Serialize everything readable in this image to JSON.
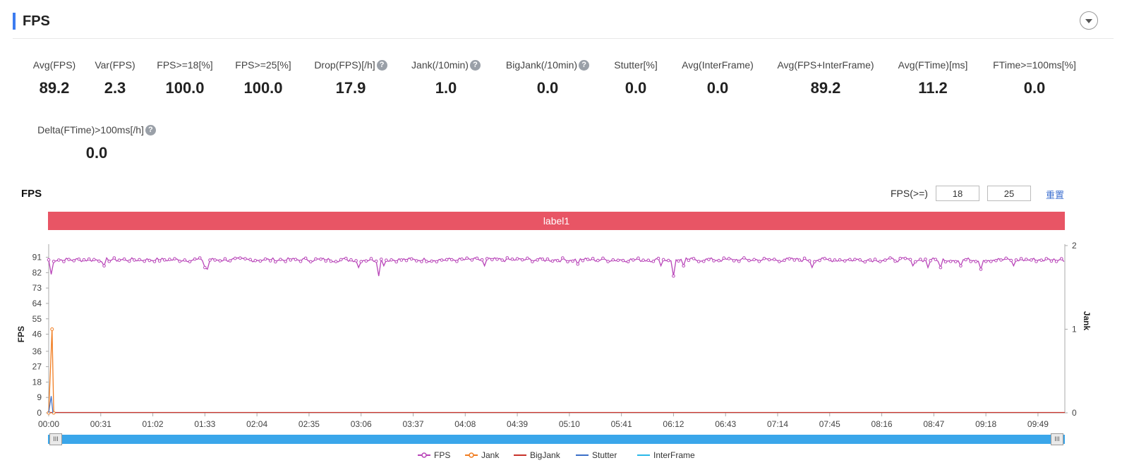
{
  "header": {
    "title": "FPS"
  },
  "metrics": [
    {
      "label": "Avg(FPS)",
      "value": "89.2",
      "help": false
    },
    {
      "label": "Var(FPS)",
      "value": "2.3",
      "help": false
    },
    {
      "label": "FPS>=18[%]",
      "value": "100.0",
      "help": false
    },
    {
      "label": "FPS>=25[%]",
      "value": "100.0",
      "help": false
    },
    {
      "label": "Drop(FPS)[/h]",
      "value": "17.9",
      "help": true
    },
    {
      "label": "Jank(/10min)",
      "value": "1.0",
      "help": true
    },
    {
      "label": "BigJank(/10min)",
      "value": "0.0",
      "help": true
    },
    {
      "label": "Stutter[%]",
      "value": "0.0",
      "help": false
    },
    {
      "label": "Avg(InterFrame)",
      "value": "0.0",
      "help": false
    },
    {
      "label": "Avg(FPS+InterFrame)",
      "value": "89.2",
      "help": false
    },
    {
      "label": "Avg(FTime)[ms]",
      "value": "11.2",
      "help": false
    },
    {
      "label": "FTime>=100ms[%]",
      "value": "0.0",
      "help": false
    },
    {
      "label": "Delta(FTime)>100ms[/h]",
      "value": "0.0",
      "help": true
    }
  ],
  "help_glyph": "?",
  "chart_section": {
    "title": "FPS",
    "threshold_label": "FPS(>=)",
    "threshold_low": "18",
    "threshold_high": "25",
    "reset_label": "重置",
    "band_label": "label1",
    "slider_handle_glyph": "III"
  },
  "chart_data": {
    "type": "line",
    "ylabel": "FPS",
    "y2label": "Jank",
    "y_ticks": [
      0,
      9,
      18,
      27,
      36,
      46,
      55,
      64,
      73,
      82,
      91
    ],
    "y2_ticks": [
      0,
      1,
      2
    ],
    "ylim": [
      0,
      95
    ],
    "y2lim": [
      0,
      2
    ],
    "x_ticks": [
      "00:00",
      "00:31",
      "01:02",
      "01:33",
      "02:04",
      "02:35",
      "03:06",
      "03:37",
      "04:08",
      "04:39",
      "05:10",
      "05:41",
      "06:12",
      "06:43",
      "07:14",
      "07:45",
      "08:16",
      "08:47",
      "09:18",
      "09:49"
    ],
    "xlim_seconds": [
      0,
      605
    ],
    "fps_base": 89.5,
    "fps_dips": [
      {
        "t": 2,
        "v": 81
      },
      {
        "t": 4,
        "v": 84
      },
      {
        "t": 33,
        "v": 86
      },
      {
        "t": 93,
        "v": 85
      },
      {
        "t": 95,
        "v": 84
      },
      {
        "t": 97,
        "v": 86
      },
      {
        "t": 185,
        "v": 85
      },
      {
        "t": 197,
        "v": 80
      },
      {
        "t": 200,
        "v": 86
      },
      {
        "t": 260,
        "v": 86
      },
      {
        "t": 315,
        "v": 87
      },
      {
        "t": 365,
        "v": 86
      },
      {
        "t": 372,
        "v": 80
      },
      {
        "t": 378,
        "v": 86
      },
      {
        "t": 455,
        "v": 85
      },
      {
        "t": 515,
        "v": 86
      },
      {
        "t": 517,
        "v": 84
      },
      {
        "t": 524,
        "v": 85
      },
      {
        "t": 531,
        "v": 85
      },
      {
        "t": 543,
        "v": 86
      },
      {
        "t": 555,
        "v": 84
      },
      {
        "t": 575,
        "v": 86
      }
    ],
    "jank": [
      {
        "t": 0,
        "v": 0
      },
      {
        "t": 2,
        "v": 1
      },
      {
        "t": 3,
        "v": 0
      }
    ],
    "stutter": [
      {
        "t": 0,
        "v": 0
      },
      {
        "t": 1.5,
        "v": 0.2
      },
      {
        "t": 2.5,
        "v": 0
      }
    ],
    "series": [
      {
        "name": "FPS",
        "color": "#b844b8"
      },
      {
        "name": "Jank",
        "color": "#f07c20"
      },
      {
        "name": "BigJank",
        "color": "#c8322a"
      },
      {
        "name": "Stutter",
        "color": "#3a6fc8"
      },
      {
        "name": "InterFrame",
        "color": "#2ab8e8"
      }
    ],
    "grid": false,
    "legend_position": "bottom-center"
  }
}
